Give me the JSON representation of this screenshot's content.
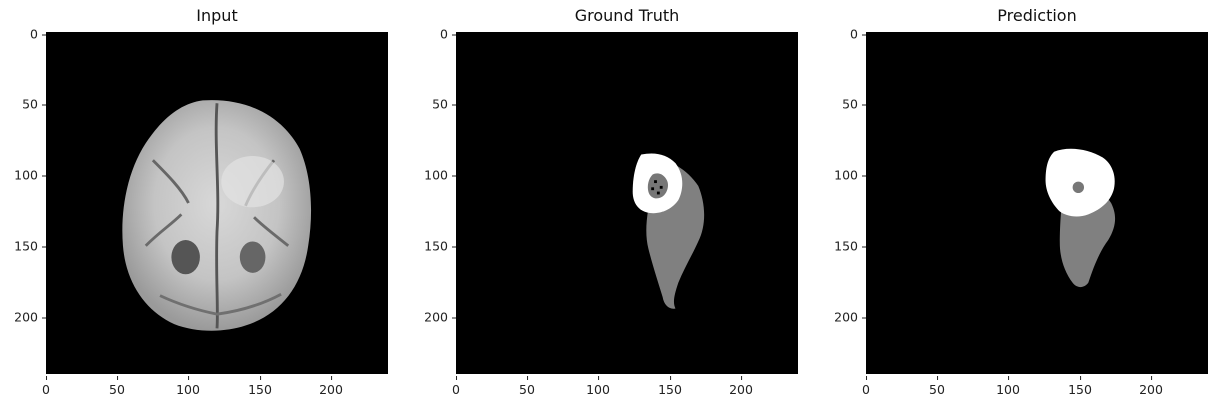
{
  "panels": [
    {
      "title": "Input"
    },
    {
      "title": "Ground Truth"
    },
    {
      "title": "Prediction"
    }
  ],
  "axis": {
    "x_ticks": [
      "0",
      "50",
      "100",
      "150",
      "200"
    ],
    "y_ticks": [
      "0",
      "50",
      "100",
      "150",
      "200"
    ],
    "xlim": [
      0,
      240
    ],
    "ylim": [
      240,
      0
    ]
  },
  "colors": {
    "background": "#000000",
    "enhancing_region": "#ffffff",
    "edema_region": "#808080"
  }
}
